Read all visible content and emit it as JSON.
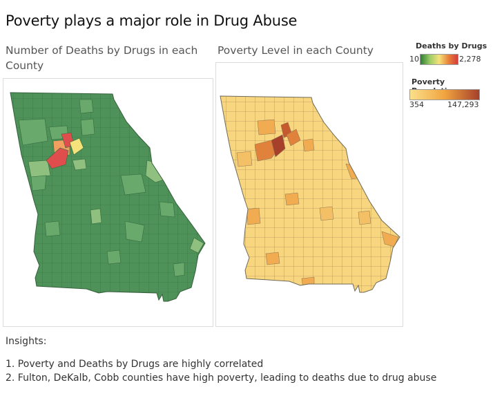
{
  "title": "Poverty plays a major role in Drug Abuse",
  "left_map": {
    "title": "Number of Deaths by Drugs in each County"
  },
  "right_map": {
    "title": "Poverty Level in each County"
  },
  "legends": {
    "deaths": {
      "title": "Deaths by Drugs",
      "min": "10",
      "max": "2,278",
      "colors": [
        "#2e7d32",
        "#9ccc65",
        "#f5e27a",
        "#e8833a",
        "#d43d3d"
      ]
    },
    "poverty": {
      "title": "Poverty Population",
      "min": "354",
      "max": "147,293",
      "colors": [
        "#fbe08b",
        "#f1a440",
        "#a6402a"
      ]
    }
  },
  "insights": {
    "heading": "Insights:",
    "items": [
      "1. Poverty and Deaths by Drugs are highly correlated",
      "2. Fulton, DeKalb, Cobb counties have high poverty, leading to deaths due to drug abuse"
    ]
  },
  "colors": {
    "death_base": "#4e9159",
    "death_mid": "#6aa96c",
    "death_light": "#8fc080",
    "death_high": "#df4d4d",
    "poverty_base": "#f8d57f",
    "poverty_mid": "#f1ac51",
    "poverty_high": "#c55a2e"
  }
}
